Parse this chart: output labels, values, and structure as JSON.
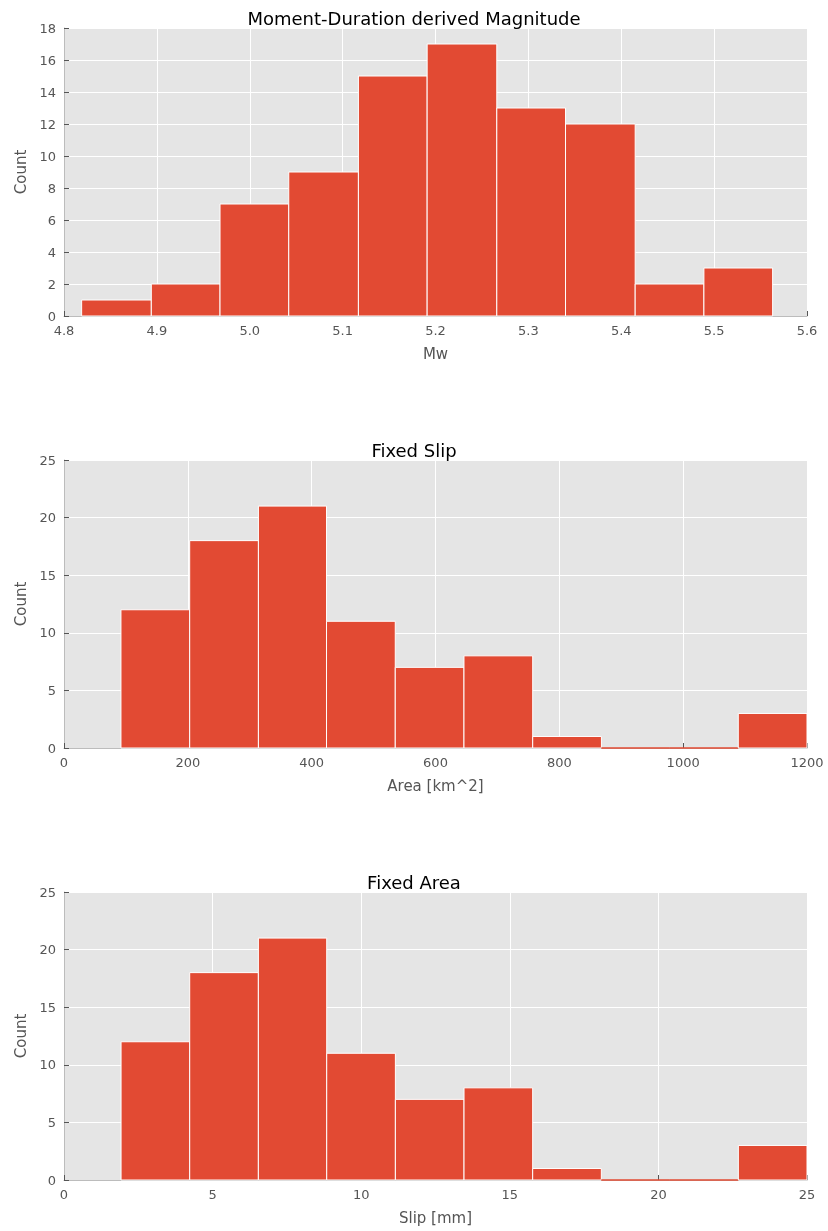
{
  "chart_data": [
    {
      "type": "histogram",
      "title": "Moment-Duration derived Magnitude",
      "xlabel": "Mw",
      "ylabel": "Count",
      "bins": [
        4.819,
        4.894,
        4.968,
        5.042,
        5.117,
        5.191,
        5.266,
        5.34,
        5.415,
        5.489,
        5.563
      ],
      "values": [
        1,
        2,
        7,
        9,
        15,
        17,
        13,
        12,
        2,
        3
      ],
      "color": "#e24a33",
      "xlim": [
        4.8,
        5.6
      ],
      "xticks": [
        4.8,
        4.9,
        {
          "value": 5.0,
          "label": "5.0"
        },
        5.1,
        5.2,
        5.3,
        5.4,
        5.5,
        5.6
      ],
      "ylim": [
        0,
        18
      ],
      "yticks": [
        0,
        2,
        4,
        6,
        8,
        10,
        12,
        14,
        16,
        18
      ],
      "grid": true
    },
    {
      "type": "histogram",
      "title": "Fixed Slip",
      "xlabel": "Area [km^2]",
      "ylabel": "Count",
      "bins": [
        92,
        203,
        314,
        424,
        535,
        646,
        757,
        868,
        978,
        1089,
        1200
      ],
      "values": [
        12,
        18,
        21,
        11,
        7,
        8,
        1,
        0,
        0,
        3
      ],
      "color": "#e24a33",
      "xlim": [
        0,
        1200
      ],
      "xticks": [
        0,
        200,
        400,
        600,
        800,
        1000,
        1200
      ],
      "ylim": [
        0,
        25
      ],
      "yticks": [
        0,
        5,
        10,
        15,
        20,
        25
      ],
      "grid": true
    },
    {
      "type": "histogram",
      "title": "Fixed Area",
      "xlabel": "Slip [mm]",
      "ylabel": "Count",
      "bins": [
        1.92,
        4.23,
        6.54,
        8.84,
        11.15,
        13.46,
        15.77,
        18.08,
        20.38,
        22.69,
        25
      ],
      "values": [
        12,
        18,
        21,
        11,
        7,
        8,
        1,
        0,
        0,
        3
      ],
      "color": "#e24a33",
      "xlim": [
        0,
        25
      ],
      "xticks": [
        0,
        5,
        10,
        15,
        20,
        25
      ],
      "ylim": [
        0,
        25
      ],
      "yticks": [
        0,
        5,
        10,
        15,
        20,
        25
      ],
      "grid": true
    }
  ]
}
